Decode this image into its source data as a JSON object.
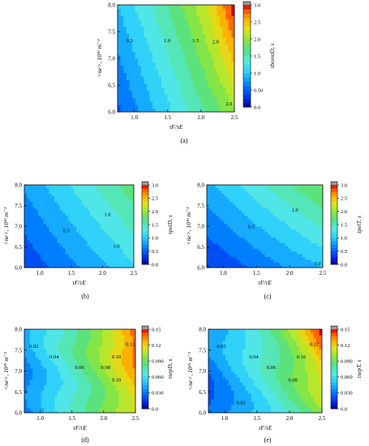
{
  "chart_data": [
    {
      "type": "heatmap",
      "panel_label": "(a)",
      "xlabel": "τF/τE",
      "ylabel": "<ne>, 10¹⁹ m⁻³",
      "colorbar_label": "τboostD, s",
      "xlim": [
        0.75,
        2.5
      ],
      "ylim": [
        6.0,
        8.0
      ],
      "xticks": [
        "1.0",
        "1.5",
        "2.0",
        "2.5"
      ],
      "yticks": [
        "6.0",
        "6.5",
        "7.0",
        "7.5",
        "8.0"
      ],
      "zlim": [
        0,
        3.0
      ],
      "colorbar_ticks": [
        "0.0",
        "0.50",
        "1.0",
        "1.5",
        "2.0",
        "2.5",
        "3.0"
      ],
      "contours": [
        {
          "label": "0.5",
          "x": 0.93,
          "y": 7.3
        },
        {
          "label": "1.0",
          "x": 1.49,
          "y": 7.3
        },
        {
          "label": "1.5",
          "x": 1.92,
          "y": 7.3
        },
        {
          "label": "2.0",
          "x": 2.22,
          "y": 7.28
        },
        {
          "label": "2.0",
          "x": 2.42,
          "y": 6.12
        }
      ],
      "grid": false
    },
    {
      "type": "heatmap",
      "panel_label": "(b)",
      "xlabel": "τF/τE",
      "ylabel": "<ne>, 10¹⁹ m⁻³",
      "colorbar_label": "τpelD, s",
      "xlim": [
        0.75,
        2.5
      ],
      "ylim": [
        6.0,
        8.0
      ],
      "xticks": [
        "1.0",
        "1.5",
        "2.0",
        "2.5"
      ],
      "yticks": [
        "6.0",
        "6.5",
        "7.0",
        "7.5",
        "8.0"
      ],
      "zlim": [
        0,
        3.0
      ],
      "colorbar_ticks": [
        "0.0",
        "0.5",
        "1.0",
        "1.5",
        "2.0",
        "2.5",
        "3.0"
      ],
      "contours": [
        {
          "label": "0.5",
          "x": 1.42,
          "y": 6.85
        },
        {
          "label": "1.0",
          "x": 2.08,
          "y": 7.25
        },
        {
          "label": "1.0",
          "x": 2.22,
          "y": 6.48
        }
      ],
      "grid": false
    },
    {
      "type": "heatmap",
      "panel_label": "(c)",
      "xlabel": "τF/τE",
      "ylabel": "<ne>, 10¹⁹ m⁻³",
      "colorbar_label": "τpelT, s",
      "xlim": [
        0.75,
        2.5
      ],
      "ylim": [
        6.0,
        8.0
      ],
      "xticks": [
        "1.0",
        "1.5",
        "2.0",
        "2.5"
      ],
      "yticks": [
        "6.0",
        "6.5",
        "7.0",
        "7.5",
        "8.0"
      ],
      "zlim": [
        0,
        3.0
      ],
      "colorbar_ticks": [
        "0.0",
        "0.5",
        "1.0",
        "1.5",
        "2.0",
        "2.5",
        "3.0"
      ],
      "contours": [
        {
          "label": "0.5",
          "x": 1.42,
          "y": 6.95
        },
        {
          "label": "1.0",
          "x": 2.08,
          "y": 7.35
        },
        {
          "label": "1.0",
          "x": 2.42,
          "y": 6.06
        }
      ],
      "grid": false
    },
    {
      "type": "heatmap",
      "panel_label": "(d)",
      "xlabel": "τF/τE",
      "ylabel": "<ne>, 10¹⁹ m⁻³",
      "colorbar_label": "τsepD, s",
      "xlim": [
        0.75,
        2.5
      ],
      "ylim": [
        6.0,
        8.0
      ],
      "xticks": [
        "1.0",
        "1.5",
        "2.0",
        "2.5"
      ],
      "yticks": [
        "6.0",
        "6.5",
        "7.0",
        "7.5",
        "8.0"
      ],
      "zlim": [
        0,
        0.15
      ],
      "colorbar_ticks": [
        "0.0",
        "0.030",
        "0.060",
        "0.090",
        "0.12",
        "0.15"
      ],
      "contours": [
        {
          "label": "0.02",
          "x": 0.9,
          "y": 7.55
        },
        {
          "label": "0.04",
          "x": 1.22,
          "y": 7.3
        },
        {
          "label": "0.06",
          "x": 1.62,
          "y": 7.05
        },
        {
          "label": "0.08",
          "x": 2.03,
          "y": 7.05
        },
        {
          "label": "0.10",
          "x": 2.2,
          "y": 7.3
        },
        {
          "label": "0.10",
          "x": 2.2,
          "y": 6.75
        },
        {
          "label": "0.12",
          "x": 2.42,
          "y": 7.6
        }
      ],
      "grid": false
    },
    {
      "type": "heatmap",
      "panel_label": "(e)",
      "xlabel": "τF/τE",
      "ylabel": "<ne>, 10¹⁹ m⁻³",
      "colorbar_label": "τsepT, s",
      "xlim": [
        0.75,
        2.5
      ],
      "ylim": [
        6.0,
        8.0
      ],
      "xticks": [
        "1.0",
        "1.5",
        "2.0",
        "2.5"
      ],
      "yticks": [
        "6.0",
        "6.5",
        "7.0",
        "7.5",
        "8.0"
      ],
      "zlim": [
        0,
        0.15
      ],
      "colorbar_ticks": [
        "0.0",
        "0.030",
        "0.060",
        "0.090",
        "0.12",
        "0.15"
      ],
      "contours": [
        {
          "label": "0.02",
          "x": 0.95,
          "y": 7.55
        },
        {
          "label": "0.04",
          "x": 1.45,
          "y": 7.3
        },
        {
          "label": "0.06",
          "x": 1.72,
          "y": 7.05
        },
        {
          "label": "0.08",
          "x": 2.05,
          "y": 6.75
        },
        {
          "label": "0.10",
          "x": 2.18,
          "y": 7.3
        },
        {
          "label": "0.12",
          "x": 2.38,
          "y": 7.6
        },
        {
          "label": "0.02",
          "x": 1.25,
          "y": 6.2
        }
      ],
      "grid": false
    }
  ]
}
